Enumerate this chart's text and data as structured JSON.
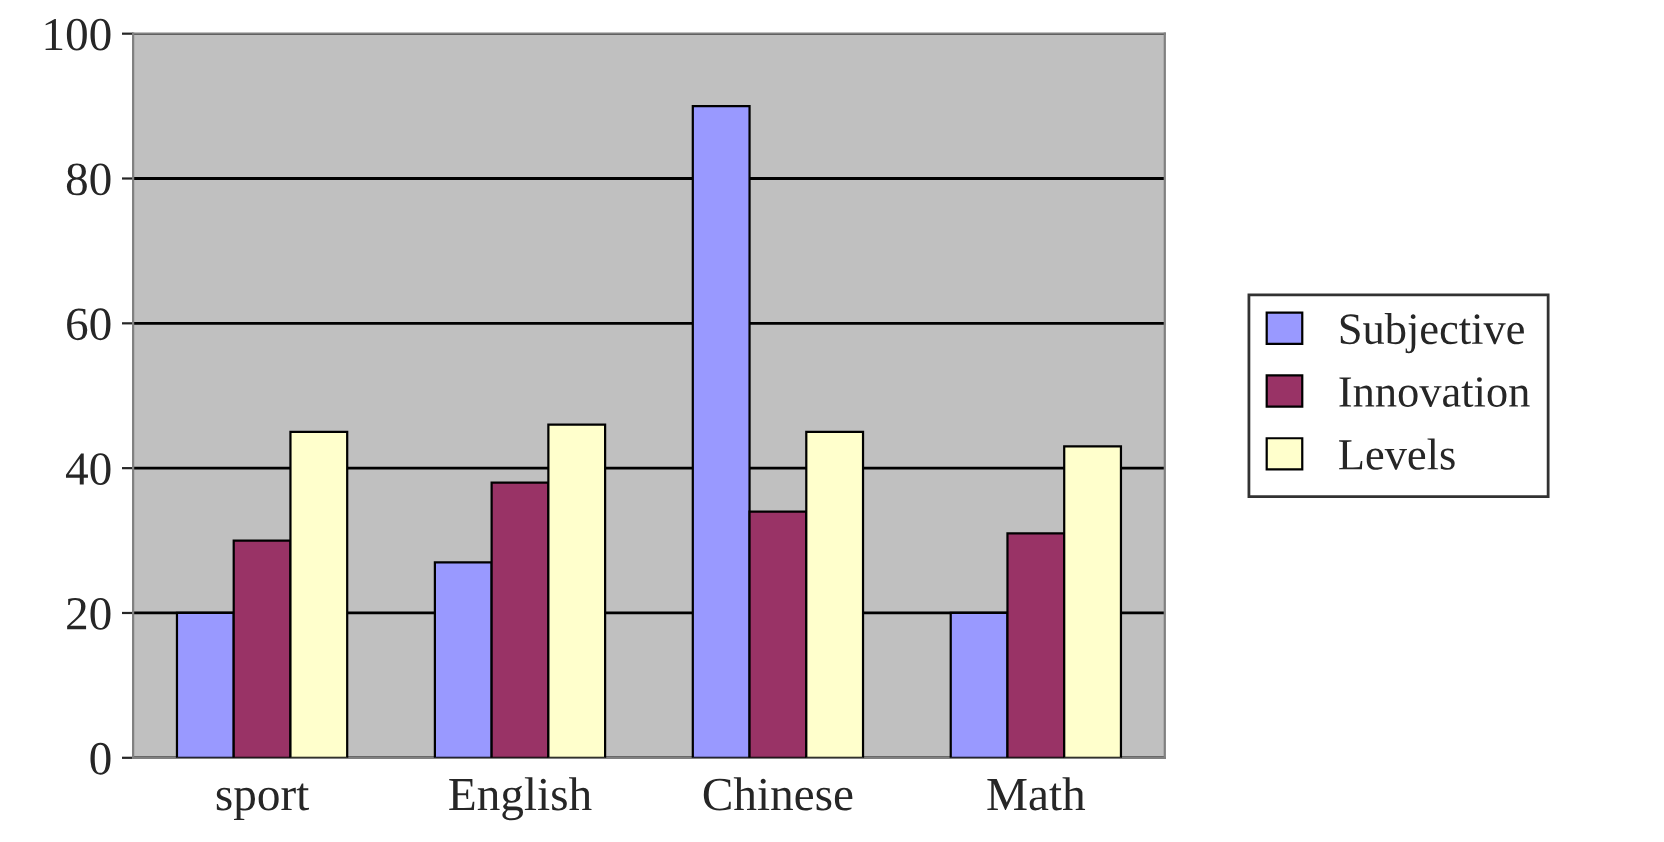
{
  "chart_data": {
    "type": "bar",
    "categories": [
      "sport",
      "English",
      "Chinese",
      "Math"
    ],
    "series": [
      {
        "name": "Subjective",
        "color": "#9999ff",
        "values": [
          20,
          27,
          90,
          20
        ]
      },
      {
        "name": "Innovation",
        "color": "#993366",
        "values": [
          30,
          38,
          34,
          31
        ]
      },
      {
        "name": "Levels",
        "color": "#ffffcc",
        "values": [
          45,
          46,
          45,
          43
        ]
      }
    ],
    "ylim": [
      0,
      100
    ],
    "yticks": [
      0,
      20,
      40,
      60,
      80,
      100
    ],
    "grid": "y",
    "legend": "right"
  }
}
